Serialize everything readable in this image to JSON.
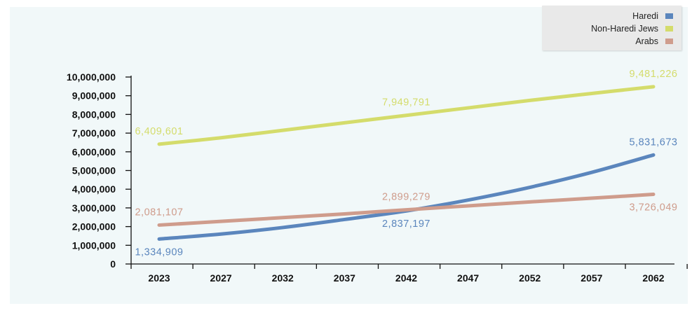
{
  "chart_data": {
    "type": "line",
    "x": [
      "2023",
      "2027",
      "2032",
      "2037",
      "2042",
      "2047",
      "2052",
      "2057",
      "2062"
    ],
    "ylim": [
      0,
      10000000
    ],
    "yticks": [
      "0",
      "1,000,000",
      "2,000,000",
      "3,000,000",
      "4,000,000",
      "5,000,000",
      "6,000,000",
      "7,000,000",
      "8,000,000",
      "9,000,000",
      "10,000,000"
    ],
    "legend_position": "top-right",
    "grid": false,
    "series": [
      {
        "name": "Haredi",
        "color": "#5b86bd",
        "values": [
          1334909,
          1600000,
          1950000,
          2380000,
          2837197,
          3420000,
          4100000,
          4900000,
          5831673
        ]
      },
      {
        "name": "Non-Haredi Jews",
        "color": "#d4dc6b",
        "values": [
          6409601,
          6750000,
          7150000,
          7550000,
          7949791,
          8350000,
          8750000,
          9120000,
          9481226
        ]
      },
      {
        "name": "Arabs",
        "color": "#cf9c8c",
        "values": [
          2081107,
          2280000,
          2480000,
          2680000,
          2899279,
          3110000,
          3320000,
          3520000,
          3726049
        ]
      }
    ],
    "annotations": [
      {
        "text": "9,481,226",
        "series": 1,
        "index": 8,
        "pos": "above"
      },
      {
        "text": "7,949,791",
        "series": 1,
        "index": 4,
        "pos": "above"
      },
      {
        "text": "6,409,601",
        "series": 1,
        "index": 0,
        "pos": "above"
      },
      {
        "text": "5,831,673",
        "series": 0,
        "index": 8,
        "pos": "above"
      },
      {
        "text": "2,899,279",
        "series": 2,
        "index": 4,
        "pos": "above"
      },
      {
        "text": "2,081,107",
        "series": 2,
        "index": 0,
        "pos": "above"
      },
      {
        "text": "2,837,197",
        "series": 0,
        "index": 4,
        "pos": "below"
      },
      {
        "text": "1,334,909",
        "series": 0,
        "index": 0,
        "pos": "below"
      },
      {
        "text": "3,726,049",
        "series": 2,
        "index": 8,
        "pos": "below"
      }
    ]
  }
}
